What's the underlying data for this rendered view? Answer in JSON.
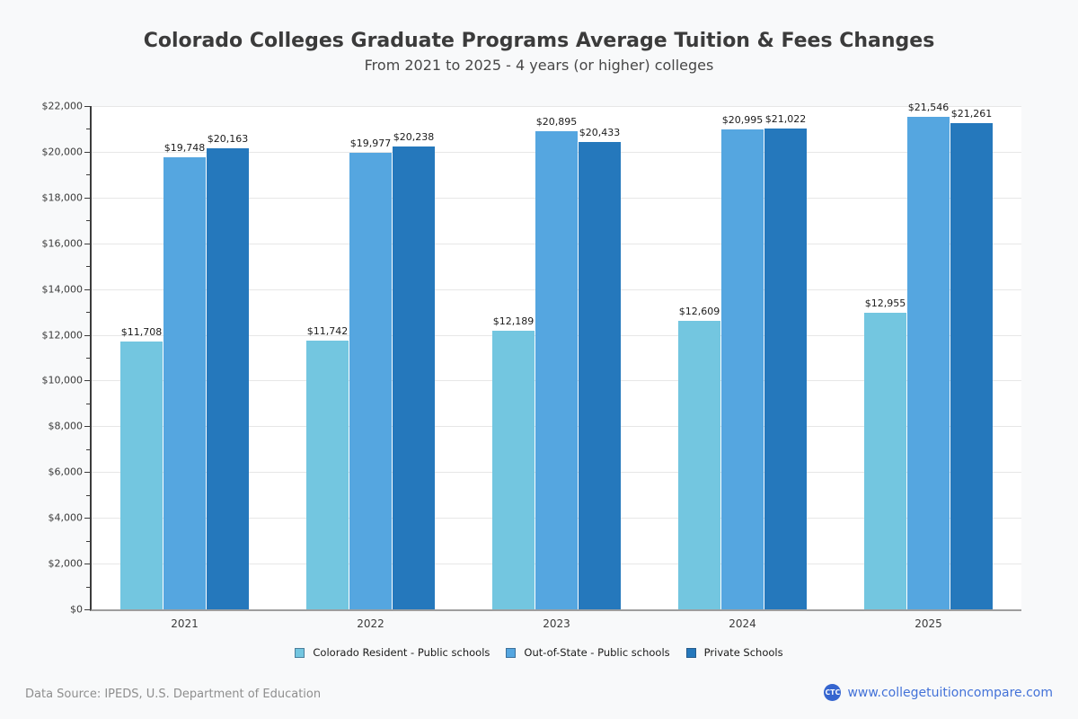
{
  "chart_data": {
    "type": "bar",
    "title": "Colorado Colleges Graduate Programs Average Tuition & Fees Changes",
    "subtitle": "From 2021 to 2025 - 4 years (or higher) colleges",
    "categories": [
      "2021",
      "2022",
      "2023",
      "2024",
      "2025"
    ],
    "series": [
      {
        "name": "Colorado Resident - Public schools",
        "color": "#73c6e0",
        "values": [
          11708,
          11742,
          12189,
          12609,
          12955
        ],
        "labels": [
          "$11,708",
          "$11,742",
          "$12,189",
          "$12,609",
          "$12,955"
        ]
      },
      {
        "name": "Out-of-State - Public schools",
        "color": "#55a6e0",
        "values": [
          19748,
          19977,
          20895,
          20995,
          21546
        ],
        "labels": [
          "$19,748",
          "$19,977",
          "$20,895",
          "$20,995",
          "$21,546"
        ]
      },
      {
        "name": "Private Schools",
        "color": "#2578bc",
        "values": [
          20163,
          20238,
          20433,
          21022,
          21261
        ],
        "labels": [
          "$20,163",
          "$20,238",
          "$20,433",
          "$21,022",
          "$21,261"
        ]
      }
    ],
    "ylim": [
      0,
      22000
    ],
    "ytick_step": 2000,
    "ytick_minor_step": 1000,
    "ytick_labels": [
      "$0",
      "$2,000",
      "$4,000",
      "$6,000",
      "$8,000",
      "$10,000",
      "$12,000",
      "$14,000",
      "$16,000",
      "$18,000",
      "$20,000",
      "$22,000"
    ],
    "grid": true,
    "legend_position": "bottom"
  },
  "footer": {
    "source": "Data Source: IPEDS, U.S. Department of Education",
    "logo_text": "CTC",
    "website": "www.collegetuitioncompare.com"
  },
  "colors": {
    "page_bg": "#f8f9fa",
    "plot_bg": "#ffffff",
    "grid": "#e7e7e7",
    "axis_y": "#3c3c3c",
    "axis_x": "#9e9e9e",
    "text": "#3b3b3b",
    "muted": "#8e8e8e",
    "link": "#4372d8",
    "logo_bg": "#3565cf"
  }
}
